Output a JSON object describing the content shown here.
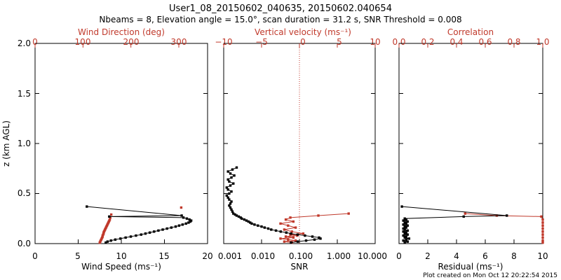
{
  "title_line1": "User1_08_20150602_040635, 20150602.040654",
  "title_line2": "Nbeams = 8, Elevation angle = 15.0°, scan duration = 31.2 s, SNR Threshold = 0.008",
  "footer": "Plot created on Mon Oct 12 20:22:54 2015",
  "colors": {
    "axis": "#000000",
    "accent": "#c0392b",
    "data_black": "#000000",
    "data_red": "#c0392b"
  },
  "chart_data": [
    {
      "type": "scatter",
      "panel": "wind",
      "ylabel": "z (km AGL)",
      "yticks": [
        "0.0",
        "0.5",
        "1.0",
        "1.5",
        "2.0"
      ],
      "ylim": [
        0,
        2.0
      ],
      "xlabel": "Wind Speed (ms⁻¹)",
      "xticks": [
        "0",
        "5",
        "10",
        "15",
        "20"
      ],
      "xlim": [
        0,
        20
      ],
      "top_label": "Wind Direction (deg)",
      "top_ticks": [
        "0",
        "100",
        "200",
        "300"
      ],
      "top_lim": [
        0,
        360
      ],
      "speed": {
        "z": [
          0.01,
          0.02,
          0.03,
          0.04,
          0.05,
          0.06,
          0.07,
          0.08,
          0.09,
          0.1,
          0.11,
          0.12,
          0.13,
          0.14,
          0.15,
          0.16,
          0.17,
          0.18,
          0.19,
          0.2,
          0.21,
          0.22,
          0.23,
          0.24,
          0.25,
          0.26,
          0.27,
          0.28,
          0.37
        ],
        "x": [
          8.2,
          8.4,
          8.8,
          9.3,
          9.9,
          10.5,
          11.1,
          11.7,
          12.3,
          12.8,
          13.3,
          13.8,
          14.3,
          14.8,
          15.3,
          15.8,
          16.3,
          16.7,
          17.1,
          17.5,
          17.8,
          18.0,
          18.1,
          17.9,
          17.6,
          17.2,
          8.6,
          17.0,
          6.0
        ]
      },
      "direction": {
        "z": [
          0.01,
          0.02,
          0.03,
          0.04,
          0.05,
          0.06,
          0.07,
          0.08,
          0.09,
          0.1,
          0.11,
          0.12,
          0.13,
          0.14,
          0.15,
          0.16,
          0.17,
          0.18,
          0.19,
          0.2,
          0.21,
          0.22,
          0.23,
          0.24,
          0.26,
          0.29,
          0.36
        ],
        "x": [
          135,
          136,
          137,
          138,
          139,
          140,
          141,
          141,
          142,
          143,
          143,
          144,
          145,
          146,
          147,
          148,
          149,
          150,
          151,
          152,
          153,
          154,
          155,
          156,
          157,
          159,
          305
        ]
      }
    },
    {
      "type": "line",
      "panel": "snr_vertical_velocity",
      "xlabel": "SNR",
      "xscale": "log",
      "xticks": [
        "0.001",
        "0.010",
        "0.100",
        "1.000",
        "10.000"
      ],
      "xlim": [
        0.001,
        10
      ],
      "top_label": "Vertical velocity (ms⁻¹)",
      "top_ticks": [
        "−10",
        "−5",
        "0",
        "5",
        "10"
      ],
      "top_lim": [
        -10,
        10
      ],
      "zero_line_label": "0",
      "snr": {
        "z": [
          0.01,
          0.02,
          0.03,
          0.04,
          0.05,
          0.06,
          0.07,
          0.08,
          0.09,
          0.1,
          0.11,
          0.12,
          0.13,
          0.14,
          0.15,
          0.16,
          0.17,
          0.18,
          0.19,
          0.2,
          0.21,
          0.22,
          0.23,
          0.24,
          0.25,
          0.26,
          0.27,
          0.28,
          0.29,
          0.3,
          0.32,
          0.34,
          0.36,
          0.38,
          0.4,
          0.42,
          0.44,
          0.46,
          0.48,
          0.5,
          0.52,
          0.54,
          0.56,
          0.58,
          0.6,
          0.62,
          0.64,
          0.66,
          0.68,
          0.7,
          0.72,
          0.74,
          0.76
        ],
        "x": [
          0.06,
          0.09,
          0.15,
          0.25,
          0.36,
          0.33,
          0.22,
          0.14,
          0.09,
          0.06,
          0.045,
          0.032,
          0.024,
          0.018,
          0.015,
          0.012,
          0.01,
          0.008,
          0.0065,
          0.0055,
          0.005,
          0.0045,
          0.004,
          0.0035,
          0.003,
          0.0028,
          0.0025,
          0.0022,
          0.002,
          0.0018,
          0.0017,
          0.0016,
          0.0015,
          0.0014,
          0.0015,
          0.0016,
          0.0014,
          0.0013,
          0.0012,
          0.0014,
          0.0016,
          0.0013,
          0.0012,
          0.0015,
          0.0018,
          0.0014,
          0.0013,
          0.0016,
          0.0019,
          0.0015,
          0.0013,
          0.0017,
          0.0022
        ]
      },
      "vertical_velocity": {
        "z": [
          0.01,
          0.02,
          0.03,
          0.04,
          0.05,
          0.06,
          0.07,
          0.08,
          0.09,
          0.1,
          0.12,
          0.14,
          0.16,
          0.18,
          0.2,
          0.22,
          0.24,
          0.26,
          0.28,
          0.3
        ],
        "x": [
          -1.0,
          -2.0,
          -0.5,
          -1.5,
          -2.5,
          -0.8,
          -1.8,
          -0.3,
          -1.2,
          0.5,
          -1.0,
          -2.0,
          -0.5,
          -1.5,
          -2.5,
          -0.8,
          -1.8,
          -1.2,
          2.5,
          6.5
        ]
      }
    },
    {
      "type": "line",
      "panel": "correlation_residual",
      "xlabel": "Residual (ms⁻¹)",
      "xticks": [
        "0",
        "2",
        "4",
        "6",
        "8",
        "10"
      ],
      "xlim": [
        0,
        10
      ],
      "top_label": "Correlation",
      "top_ticks": [
        "0.0",
        "0.2",
        "0.4",
        "0.6",
        "0.8",
        "1.0"
      ],
      "top_lim": [
        0,
        1.0
      ],
      "residual": {
        "z": [
          0.01,
          0.02,
          0.03,
          0.04,
          0.05,
          0.06,
          0.07,
          0.08,
          0.09,
          0.1,
          0.11,
          0.12,
          0.13,
          0.14,
          0.15,
          0.16,
          0.17,
          0.18,
          0.19,
          0.2,
          0.21,
          0.22,
          0.23,
          0.24,
          0.25,
          0.27,
          0.28,
          0.37
        ],
        "x": [
          0.4,
          0.6,
          0.3,
          0.5,
          0.7,
          0.4,
          0.5,
          0.3,
          0.6,
          0.4,
          0.5,
          0.3,
          0.6,
          0.4,
          0.3,
          0.5,
          0.4,
          0.6,
          0.3,
          0.5,
          0.4,
          0.6,
          0.3,
          0.5,
          0.4,
          4.5,
          7.5,
          0.2
        ]
      },
      "correlation": {
        "z": [
          0.01,
          0.03,
          0.06,
          0.09,
          0.12,
          0.15,
          0.18,
          0.21,
          0.24,
          0.27,
          0.28,
          0.3
        ],
        "x": [
          1.0,
          1.0,
          1.0,
          1.0,
          1.0,
          1.0,
          1.0,
          1.0,
          1.0,
          0.99,
          0.68,
          0.46
        ]
      }
    }
  ]
}
